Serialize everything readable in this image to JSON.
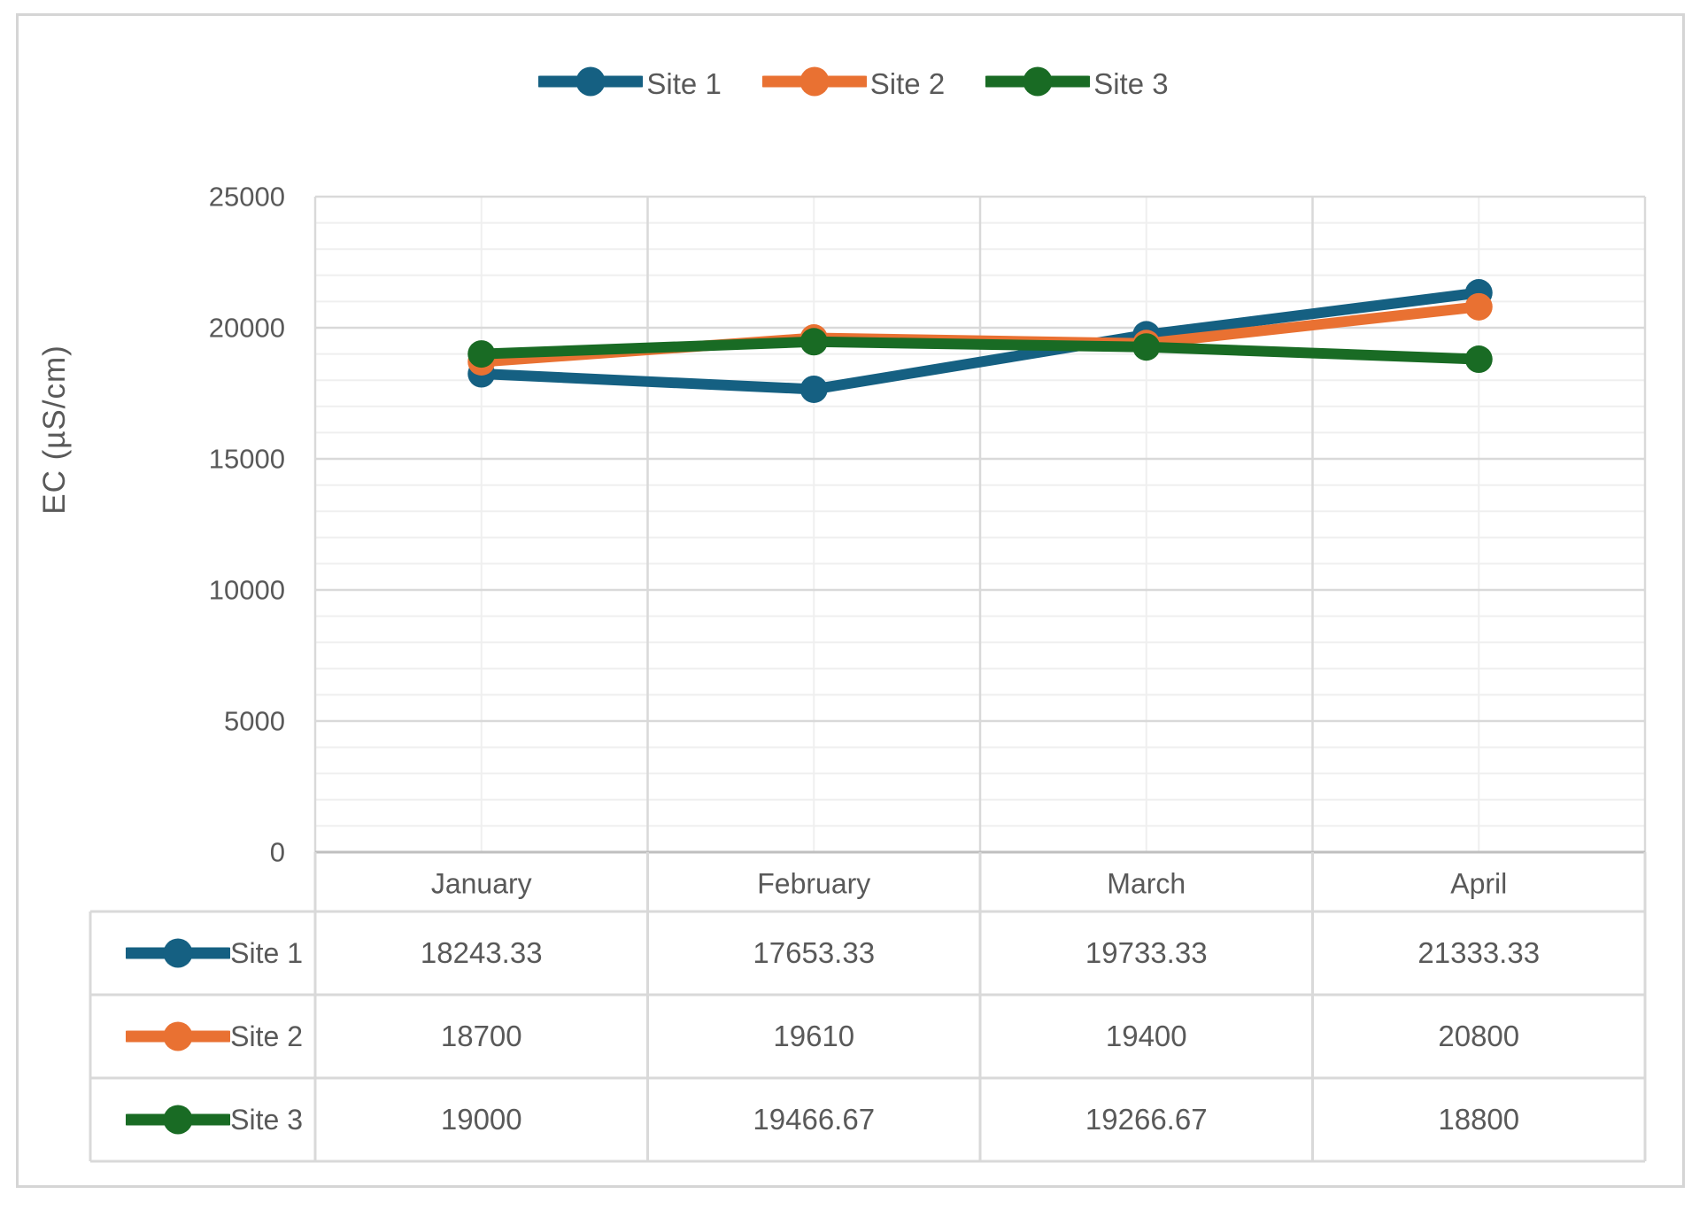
{
  "chart_data": {
    "type": "line",
    "categories": [
      "January",
      "February",
      "March",
      "April"
    ],
    "series": [
      {
        "name": "Site 1",
        "color": "#156082",
        "values": [
          18243.33,
          17653.33,
          19733.33,
          21333.33
        ]
      },
      {
        "name": "Site 2",
        "color": "#E97132",
        "values": [
          18700,
          19610,
          19400,
          20800
        ]
      },
      {
        "name": "Site 3",
        "color": "#196B24",
        "values": [
          19000,
          19466.67,
          19266.67,
          18800
        ]
      }
    ],
    "xlabel": "",
    "ylabel": "EC (µS/cm)",
    "ylim": [
      0,
      25000
    ],
    "y_major_unit": 5000,
    "y_minor_unit": 1000,
    "y_ticks": [
      "0",
      "5000",
      "10000",
      "15000",
      "20000",
      "25000"
    ],
    "grid": "major-and-minor",
    "legend_position": "top",
    "data_table_shown": true
  },
  "table": {
    "rows": [
      {
        "name": "Site 1",
        "color": "#156082",
        "cells": [
          "18243.33",
          "17653.33",
          "19733.33",
          "21333.33"
        ]
      },
      {
        "name": "Site 2",
        "color": "#E97132",
        "cells": [
          "18700",
          "19610",
          "19400",
          "20800"
        ]
      },
      {
        "name": "Site 3",
        "color": "#196B24",
        "cells": [
          "19000",
          "19466.67",
          "19266.67",
          "18800"
        ]
      }
    ]
  },
  "colors": {
    "text": "#595959",
    "major_grid": "#D9D9D9",
    "minor_grid": "#EFEFEF",
    "axis_line": "#BFBFBF",
    "table_border": "#D9D9D9",
    "figure_border": "#D5D5D5"
  }
}
